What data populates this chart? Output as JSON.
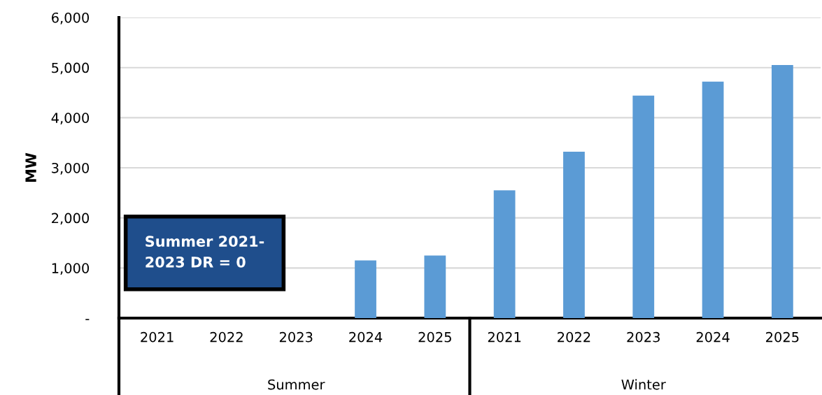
{
  "chart_data": {
    "type": "bar",
    "ylabel": "MW",
    "categories": [
      "2021",
      "2022",
      "2023",
      "2024",
      "2025",
      "2021",
      "2022",
      "2023",
      "2024",
      "2025"
    ],
    "values": [
      0,
      0,
      0,
      1150,
      1250,
      2550,
      3320,
      4440,
      4720,
      5050
    ],
    "color": "#5b9bd5",
    "ylim": [
      0,
      6000
    ],
    "yticks": [
      {
        "value": 0,
        "label": "-"
      },
      {
        "value": 1000,
        "label": "1,000"
      },
      {
        "value": 2000,
        "label": "2,000"
      },
      {
        "value": 3000,
        "label": "3,000"
      },
      {
        "value": 4000,
        "label": "4,000"
      },
      {
        "value": 5000,
        "label": "5,000"
      },
      {
        "value": 6000,
        "label": "6,000"
      }
    ],
    "grid": "y",
    "annotations": [
      "Summer 2021-\n2023 DR = 0",
      "Summer",
      "Winter"
    ]
  }
}
